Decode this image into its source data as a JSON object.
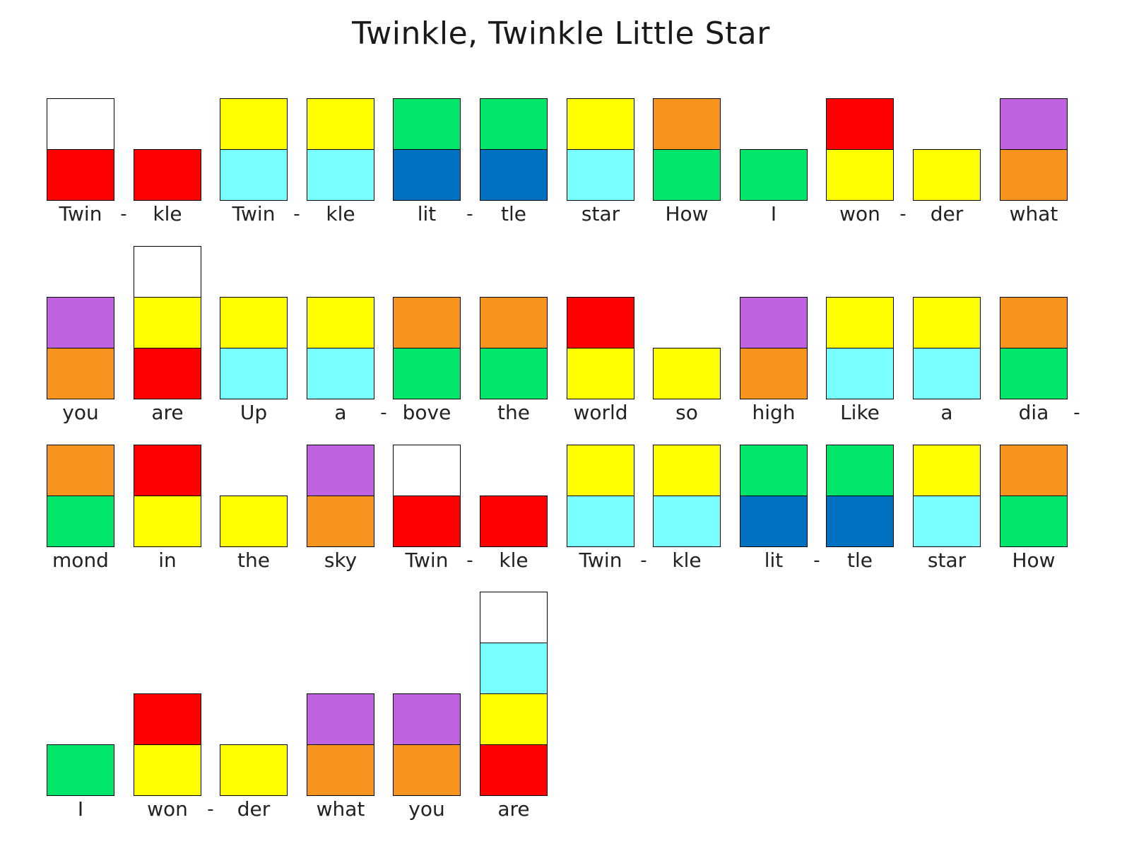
{
  "title": "Twinkle, Twinkle Little Star",
  "colors": {
    "white": "#ffffff",
    "red": "#ff0000",
    "yellow": "#ffff00",
    "cyan": "#78ffff",
    "green": "#00e56a",
    "blue": "#0070c0",
    "orange": "#f7941d",
    "purple": "#c061df"
  },
  "rows": [
    [
      {
        "syllable": "Twin",
        "hyphen": true,
        "blocks": [
          "red",
          "white"
        ]
      },
      {
        "syllable": "kle",
        "hyphen": false,
        "blocks": [
          "red"
        ]
      },
      {
        "syllable": "Twin",
        "hyphen": true,
        "blocks": [
          "cyan",
          "yellow"
        ]
      },
      {
        "syllable": "kle",
        "hyphen": false,
        "blocks": [
          "cyan",
          "yellow"
        ]
      },
      {
        "syllable": "lit",
        "hyphen": true,
        "blocks": [
          "blue",
          "green"
        ]
      },
      {
        "syllable": "tle",
        "hyphen": false,
        "blocks": [
          "blue",
          "green"
        ]
      },
      {
        "syllable": "star",
        "hyphen": false,
        "blocks": [
          "cyan",
          "yellow"
        ]
      },
      {
        "syllable": "How",
        "hyphen": false,
        "blocks": [
          "green",
          "orange"
        ]
      },
      {
        "syllable": "I",
        "hyphen": false,
        "blocks": [
          "green"
        ]
      },
      {
        "syllable": "won",
        "hyphen": true,
        "blocks": [
          "yellow",
          "red"
        ]
      },
      {
        "syllable": "der",
        "hyphen": false,
        "blocks": [
          "yellow"
        ]
      },
      {
        "syllable": "what",
        "hyphen": false,
        "blocks": [
          "orange",
          "purple"
        ]
      }
    ],
    [
      {
        "syllable": "you",
        "hyphen": false,
        "blocks": [
          "orange",
          "purple"
        ]
      },
      {
        "syllable": "are",
        "hyphen": false,
        "blocks": [
          "red",
          "yellow",
          "white"
        ]
      },
      {
        "syllable": "Up",
        "hyphen": false,
        "blocks": [
          "cyan",
          "yellow"
        ]
      },
      {
        "syllable": "a",
        "hyphen": true,
        "blocks": [
          "cyan",
          "yellow"
        ]
      },
      {
        "syllable": "bove",
        "hyphen": false,
        "blocks": [
          "green",
          "orange"
        ]
      },
      {
        "syllable": "the",
        "hyphen": false,
        "blocks": [
          "green",
          "orange"
        ]
      },
      {
        "syllable": "world",
        "hyphen": false,
        "blocks": [
          "yellow",
          "red"
        ]
      },
      {
        "syllable": "so",
        "hyphen": false,
        "blocks": [
          "yellow"
        ]
      },
      {
        "syllable": "high",
        "hyphen": false,
        "blocks": [
          "orange",
          "purple"
        ]
      },
      {
        "syllable": "Like",
        "hyphen": false,
        "blocks": [
          "cyan",
          "yellow"
        ]
      },
      {
        "syllable": "a",
        "hyphen": false,
        "blocks": [
          "cyan",
          "yellow"
        ]
      },
      {
        "syllable": "dia",
        "hyphen": true,
        "blocks": [
          "green",
          "orange"
        ]
      }
    ],
    [
      {
        "syllable": "mond",
        "hyphen": false,
        "blocks": [
          "green",
          "orange"
        ]
      },
      {
        "syllable": "in",
        "hyphen": false,
        "blocks": [
          "yellow",
          "red"
        ]
      },
      {
        "syllable": "the",
        "hyphen": false,
        "blocks": [
          "yellow"
        ]
      },
      {
        "syllable": "sky",
        "hyphen": false,
        "blocks": [
          "orange",
          "purple"
        ]
      },
      {
        "syllable": "Twin",
        "hyphen": true,
        "blocks": [
          "red",
          "white"
        ]
      },
      {
        "syllable": "kle",
        "hyphen": false,
        "blocks": [
          "red"
        ]
      },
      {
        "syllable": "Twin",
        "hyphen": true,
        "blocks": [
          "cyan",
          "yellow"
        ]
      },
      {
        "syllable": "kle",
        "hyphen": false,
        "blocks": [
          "cyan",
          "yellow"
        ]
      },
      {
        "syllable": "lit",
        "hyphen": true,
        "blocks": [
          "blue",
          "green"
        ]
      },
      {
        "syllable": "tle",
        "hyphen": false,
        "blocks": [
          "blue",
          "green"
        ]
      },
      {
        "syllable": "star",
        "hyphen": false,
        "blocks": [
          "cyan",
          "yellow"
        ]
      },
      {
        "syllable": "How",
        "hyphen": false,
        "blocks": [
          "green",
          "orange"
        ]
      }
    ],
    [
      {
        "syllable": "I",
        "hyphen": false,
        "blocks": [
          "green"
        ]
      },
      {
        "syllable": "won",
        "hyphen": true,
        "blocks": [
          "yellow",
          "red"
        ]
      },
      {
        "syllable": "der",
        "hyphen": false,
        "blocks": [
          "yellow"
        ]
      },
      {
        "syllable": "what",
        "hyphen": false,
        "blocks": [
          "orange",
          "purple"
        ]
      },
      {
        "syllable": "you",
        "hyphen": false,
        "blocks": [
          "orange",
          "purple"
        ]
      },
      {
        "syllable": "are",
        "hyphen": false,
        "blocks": [
          "red",
          "yellow",
          "cyan",
          "white"
        ]
      }
    ]
  ]
}
